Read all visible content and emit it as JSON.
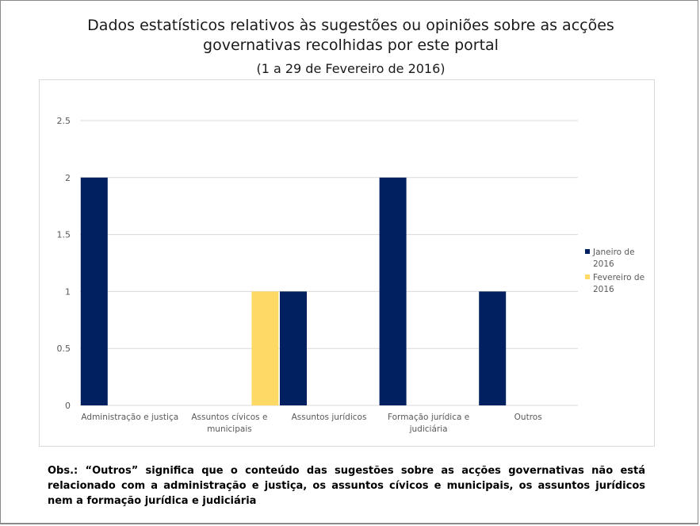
{
  "chart_data": {
    "type": "bar",
    "title_line1": "Dados estatísticos relativos às sugestões ou opiniões sobre as acções",
    "title_line2": "governativas recolhidas por este portal",
    "subtitle": "(1 a 29 de Fevereiro de 2016)",
    "categories": [
      [
        "Administração e justiça"
      ],
      [
        "Assuntos cívicos e",
        "municipais"
      ],
      [
        "Assuntos jurídicos"
      ],
      [
        "Formação jurídica e",
        "judiciária"
      ],
      [
        "Outros"
      ]
    ],
    "series": [
      {
        "name": [
          "Janeiro de",
          "2016"
        ],
        "color": "#002060",
        "values": [
          2,
          0,
          1,
          2,
          1
        ]
      },
      {
        "name": [
          "Fevereiro de",
          "2016"
        ],
        "color": "#ffd966",
        "values": [
          0,
          1,
          0,
          0,
          0
        ]
      }
    ],
    "y_ticks": [
      "0",
      "0.5",
      "1",
      "1.5",
      "2",
      "2.5"
    ],
    "ylim": [
      0,
      2.5
    ],
    "grid": true,
    "legend_position": "right"
  },
  "note": {
    "text": "Obs.: “Outros” significa que o conteúdo das sugestões sobre as acções governativas não está relacionado com a administração e justiça, os assuntos cívicos e municipais, os assuntos jurídicos nem a formação jurídica e judiciária"
  }
}
